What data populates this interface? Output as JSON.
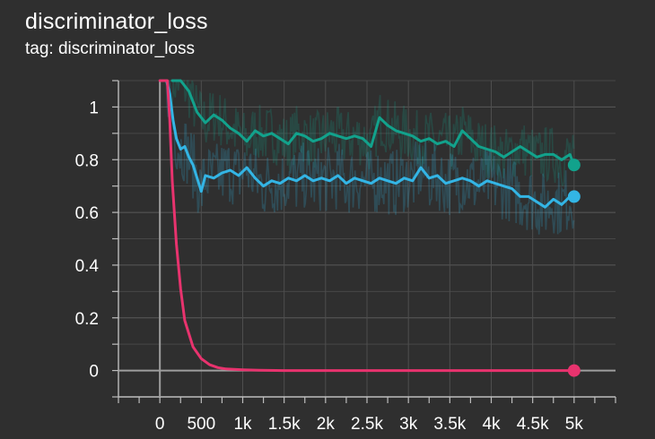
{
  "card": {
    "title": "discriminator_loss",
    "subtitle": "tag: discriminator_loss"
  },
  "colors": {
    "background": "#2f2f2f",
    "grid": "#555555",
    "axis": "#bdbdbd",
    "zero_line": "#9e9e9e"
  },
  "chart_data": {
    "type": "line",
    "title": "discriminator_loss",
    "xlabel": "",
    "ylabel": "",
    "xlim": [
      -500,
      5500
    ],
    "ylim": [
      -0.1,
      1.1
    ],
    "x_ticks": [
      0,
      500,
      1000,
      1500,
      2000,
      2500,
      3000,
      3500,
      4000,
      4500,
      5000
    ],
    "x_tick_labels": [
      "0",
      "500",
      "1k",
      "1.5k",
      "2k",
      "2.5k",
      "3k",
      "3.5k",
      "4k",
      "4.5k",
      "5k"
    ],
    "y_ticks": [
      0,
      0.2,
      0.4,
      0.6,
      0.8,
      1
    ],
    "y_tick_labels": [
      "0",
      "0.2",
      "0.4",
      "0.6",
      "0.8",
      "1"
    ],
    "grid": true,
    "legend": "none",
    "series": [
      {
        "color": "#12a28c",
        "x": [
          150,
          250,
          350,
          450,
          550,
          650,
          750,
          850,
          950,
          1050,
          1150,
          1250,
          1350,
          1450,
          1550,
          1650,
          1750,
          1850,
          1950,
          2050,
          2150,
          2250,
          2350,
          2450,
          2550,
          2650,
          2750,
          2850,
          2950,
          3050,
          3150,
          3250,
          3350,
          3450,
          3550,
          3650,
          3750,
          3850,
          3950,
          4050,
          4150,
          4250,
          4350,
          4450,
          4550,
          4650,
          4750,
          4850,
          4950,
          5000
        ],
        "y": [
          1.1,
          1.1,
          1.06,
          0.98,
          0.94,
          0.97,
          0.95,
          0.92,
          0.9,
          0.87,
          0.91,
          0.89,
          0.9,
          0.88,
          0.86,
          0.9,
          0.89,
          0.87,
          0.88,
          0.9,
          0.89,
          0.88,
          0.89,
          0.88,
          0.85,
          0.96,
          0.93,
          0.91,
          0.9,
          0.89,
          0.87,
          0.88,
          0.86,
          0.87,
          0.85,
          0.91,
          0.88,
          0.85,
          0.84,
          0.83,
          0.81,
          0.83,
          0.85,
          0.83,
          0.81,
          0.82,
          0.82,
          0.8,
          0.82,
          0.78
        ]
      },
      {
        "color": "#33b5e5",
        "x": [
          40,
          80,
          120,
          160,
          200,
          250,
          300,
          350,
          400,
          450,
          500,
          550,
          650,
          750,
          850,
          950,
          1050,
          1150,
          1250,
          1350,
          1450,
          1550,
          1650,
          1750,
          1850,
          1950,
          2050,
          2150,
          2250,
          2350,
          2450,
          2550,
          2650,
          2750,
          2850,
          2950,
          3050,
          3150,
          3250,
          3350,
          3450,
          3550,
          3650,
          3750,
          3850,
          3950,
          4050,
          4150,
          4250,
          4350,
          4450,
          4550,
          4650,
          4750,
          4850,
          4950,
          5000
        ],
        "y": [
          1.1,
          1.1,
          1.05,
          0.95,
          0.88,
          0.84,
          0.85,
          0.81,
          0.78,
          0.73,
          0.68,
          0.74,
          0.73,
          0.75,
          0.76,
          0.74,
          0.77,
          0.73,
          0.7,
          0.72,
          0.71,
          0.73,
          0.72,
          0.74,
          0.72,
          0.73,
          0.72,
          0.74,
          0.71,
          0.73,
          0.72,
          0.71,
          0.73,
          0.72,
          0.71,
          0.73,
          0.72,
          0.77,
          0.73,
          0.74,
          0.71,
          0.72,
          0.73,
          0.72,
          0.7,
          0.72,
          0.71,
          0.7,
          0.69,
          0.66,
          0.66,
          0.64,
          0.62,
          0.65,
          0.63,
          0.66,
          0.66
        ]
      },
      {
        "color": "#e8336e",
        "x": [
          0,
          30,
          60,
          90,
          120,
          150,
          200,
          250,
          300,
          400,
          500,
          600,
          700,
          800,
          1000,
          1200,
          1500,
          2000,
          3000,
          4000,
          5000
        ],
        "y": [
          1.1,
          1.1,
          1.1,
          1.1,
          0.95,
          0.72,
          0.48,
          0.31,
          0.19,
          0.09,
          0.045,
          0.022,
          0.011,
          0.006,
          0.003,
          0.001,
          0.0,
          0.0,
          0.0,
          0.0,
          0.0
        ]
      }
    ]
  }
}
